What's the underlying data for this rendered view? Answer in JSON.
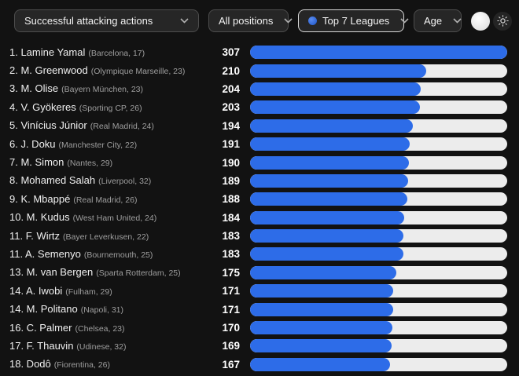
{
  "toolbar": {
    "metric_filter": {
      "label": "Successful attacking actions"
    },
    "position_filter": {
      "label": "All positions"
    },
    "league_filter": {
      "label": "Top 7 Leagues",
      "icon": "league-ball-icon"
    },
    "age_filter": {
      "label": "Age"
    },
    "theme": {
      "dark_toggle": "moon-circle",
      "light_toggle": "sun"
    }
  },
  "colors": {
    "background": "#121212",
    "bar_fill": "#2d6ce8",
    "bar_track": "#ececec",
    "dropdown_border": "#4d4d4d",
    "active_dropdown_border": "#d8d8d8"
  },
  "chart_data": {
    "type": "bar",
    "orientation": "horizontal",
    "title": "Successful attacking actions",
    "max_value": 307,
    "legend_position": "none",
    "players": [
      {
        "rank": "1",
        "name": "Lamine Yamal",
        "team": "Barcelona",
        "age": 17,
        "value": 307
      },
      {
        "rank": "2",
        "name": "M. Greenwood",
        "team": "Olympique Marseille",
        "age": 23,
        "value": 210
      },
      {
        "rank": "3",
        "name": "M. Olise",
        "team": "Bayern München",
        "age": 23,
        "value": 204
      },
      {
        "rank": "4",
        "name": "V. Gyökeres",
        "team": "Sporting CP",
        "age": 26,
        "value": 203
      },
      {
        "rank": "5",
        "name": "Vinícius Júnior",
        "team": "Real Madrid",
        "age": 24,
        "value": 194
      },
      {
        "rank": "6",
        "name": "J. Doku",
        "team": "Manchester City",
        "age": 22,
        "value": 191
      },
      {
        "rank": "7",
        "name": "M. Simon",
        "team": "Nantes",
        "age": 29,
        "value": 190
      },
      {
        "rank": "8",
        "name": "Mohamed Salah",
        "team": "Liverpool",
        "age": 32,
        "value": 189
      },
      {
        "rank": "9",
        "name": "K. Mbappé",
        "team": "Real Madrid",
        "age": 26,
        "value": 188
      },
      {
        "rank": "10",
        "name": "M. Kudus",
        "team": "West Ham United",
        "age": 24,
        "value": 184
      },
      {
        "rank": "11",
        "name": "F. Wirtz",
        "team": "Bayer Leverkusen",
        "age": 22,
        "value": 183
      },
      {
        "rank": "11",
        "name": "A. Semenyo",
        "team": "Bournemouth",
        "age": 25,
        "value": 183
      },
      {
        "rank": "13",
        "name": "M. van Bergen",
        "team": "Sparta Rotterdam",
        "age": 25,
        "value": 175
      },
      {
        "rank": "14",
        "name": "A. Iwobi",
        "team": "Fulham",
        "age": 29,
        "value": 171
      },
      {
        "rank": "14",
        "name": "M. Politano",
        "team": "Napoli",
        "age": 31,
        "value": 171
      },
      {
        "rank": "16",
        "name": "C. Palmer",
        "team": "Chelsea",
        "age": 23,
        "value": 170
      },
      {
        "rank": "17",
        "name": "F. Thauvin",
        "team": "Udinese",
        "age": 32,
        "value": 169
      },
      {
        "rank": "18",
        "name": "Dodô",
        "team": "Fiorentina",
        "age": 26,
        "value": 167
      }
    ]
  }
}
